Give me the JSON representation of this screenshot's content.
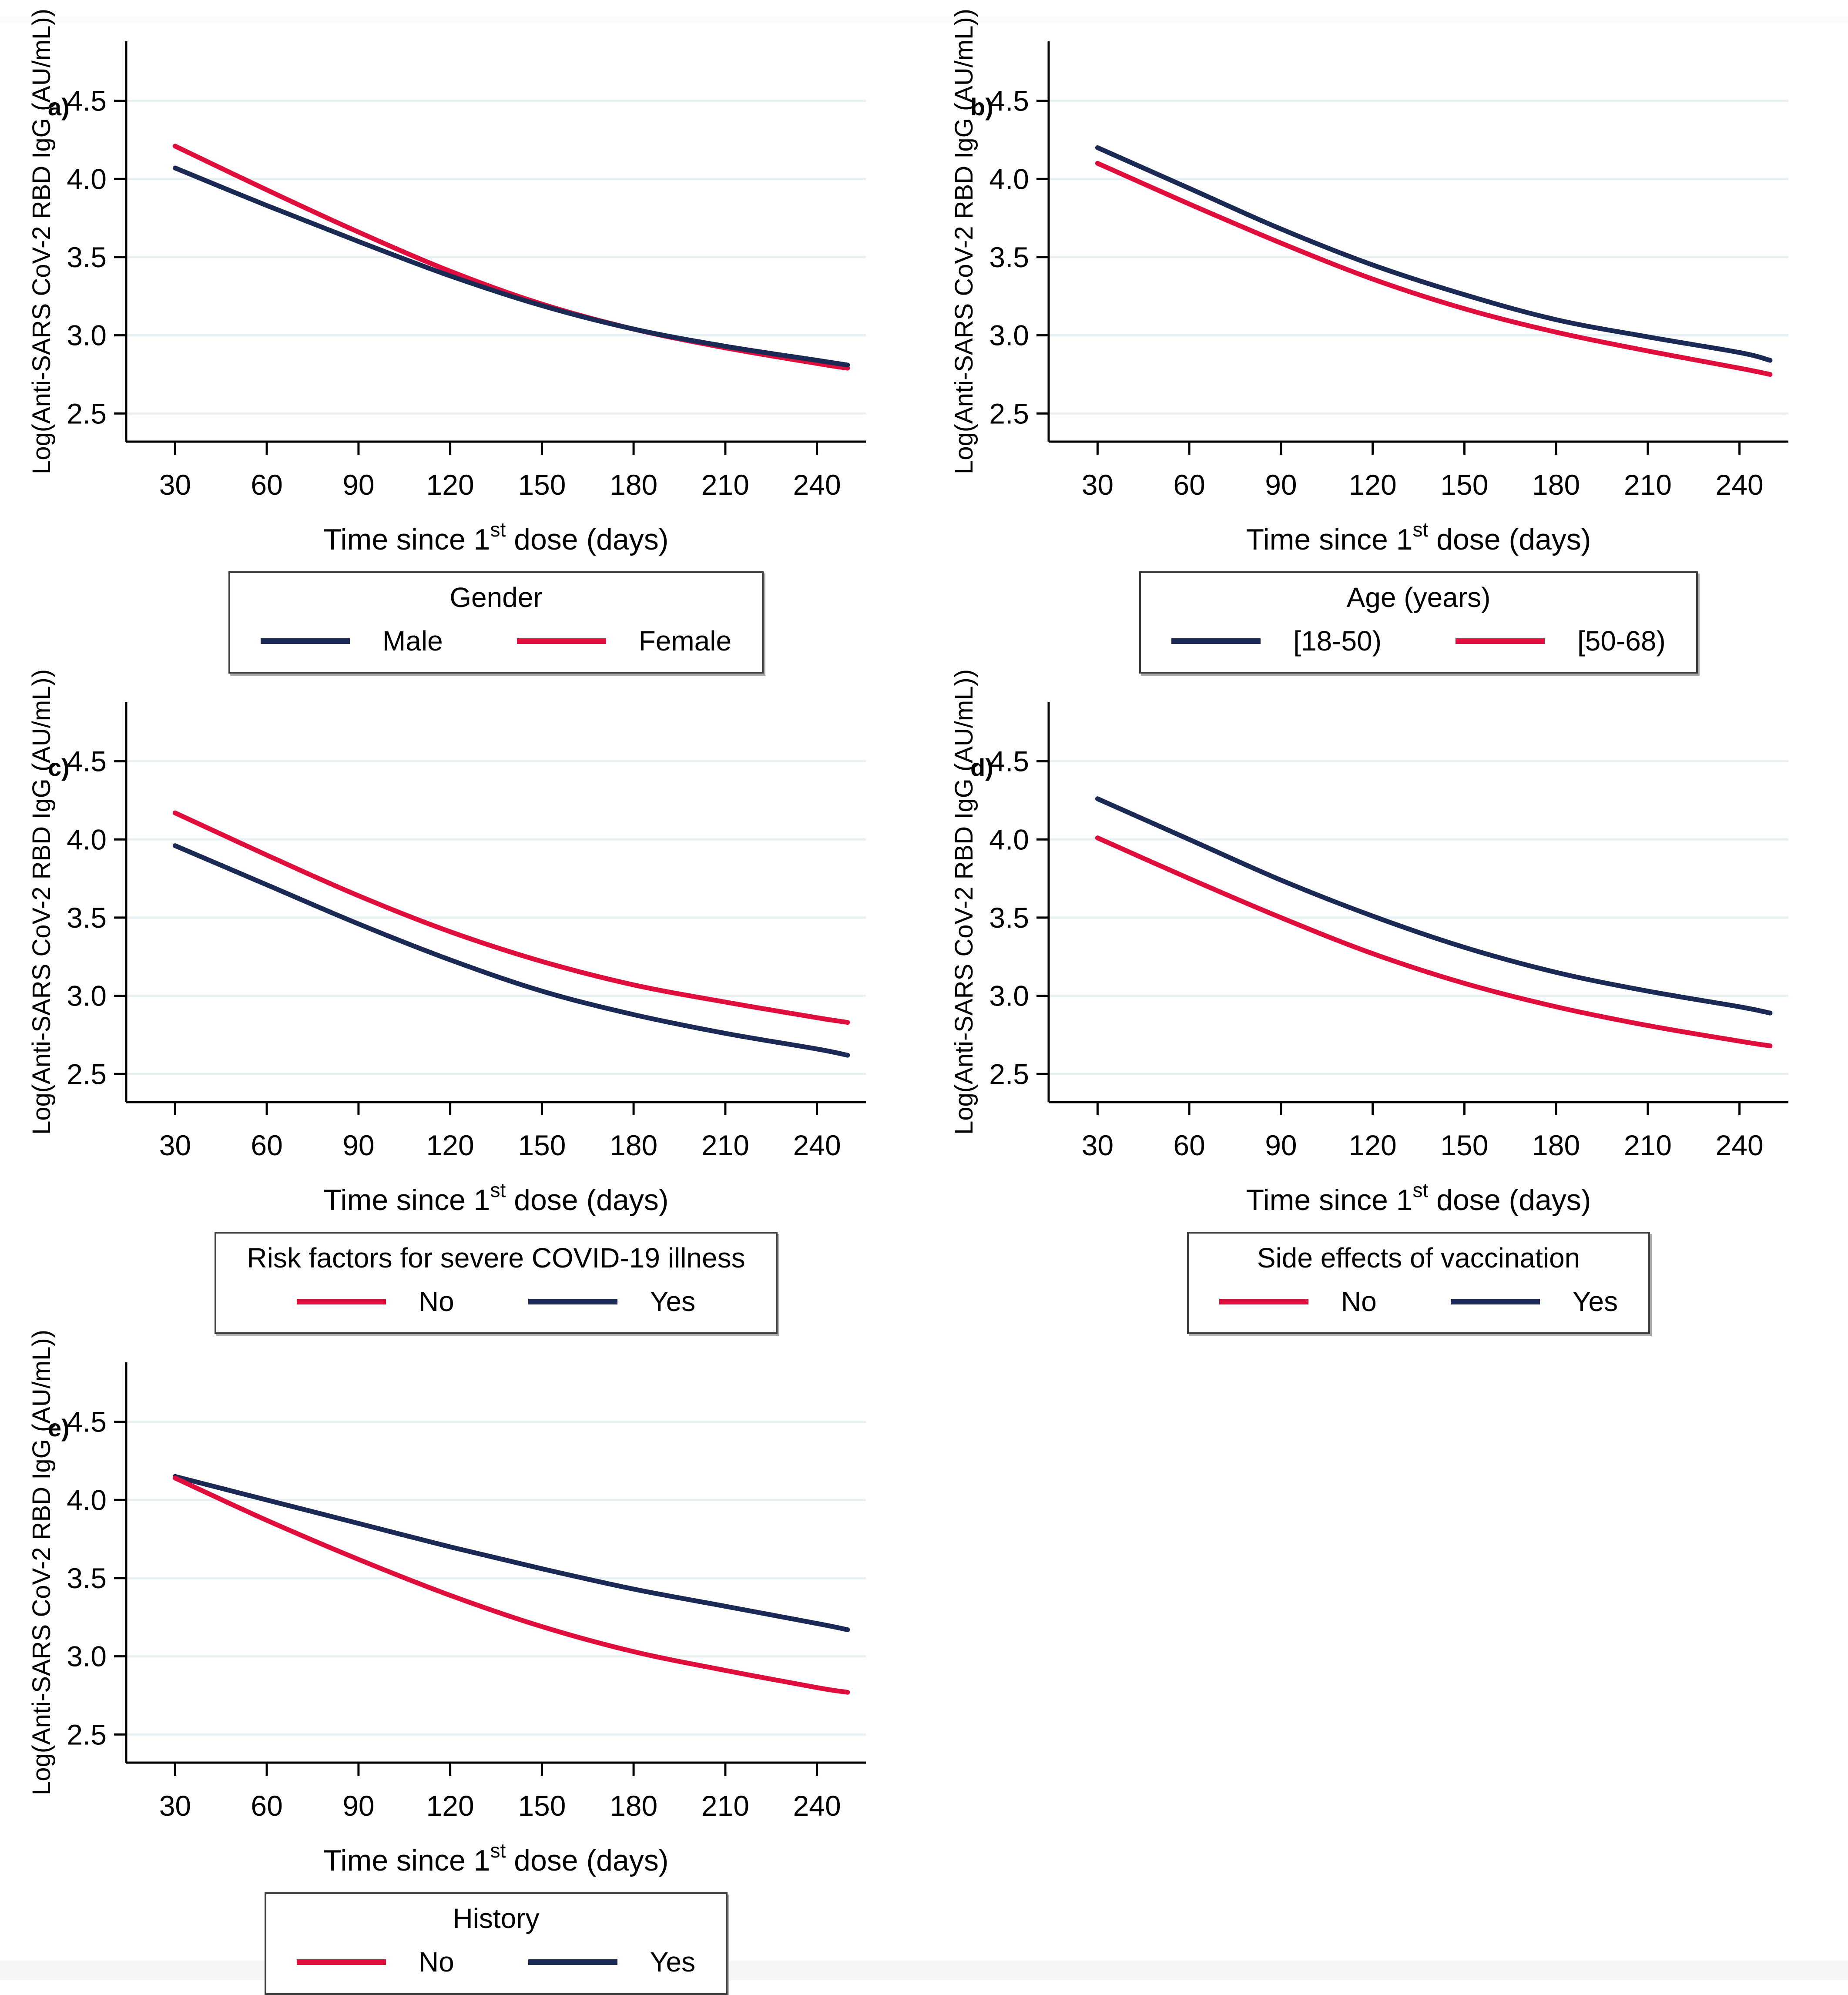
{
  "figure": {
    "background": "#ffffff",
    "grid_color": "#e8f0f4",
    "axis_color": "#000000",
    "navy": "#1b2a55",
    "crimson": "#e00e3c",
    "footer_strip_color": "#f5f6f8"
  },
  "chart_data": [
    {
      "type": "line",
      "panel_letter": "a)",
      "legend_title": "Gender",
      "legend_position": "bottom",
      "ylabel": "Log(Anti-SARS CoV-2 RBD IgG (AU/mL))",
      "xlabel_pre": "Time since 1",
      "xlabel_sup": "st",
      "xlabel_post": " dose (days)",
      "grid": "horizontal-only",
      "x": [
        30,
        60,
        90,
        120,
        150,
        180,
        210,
        240,
        250
      ],
      "x_ticks": [
        30,
        60,
        90,
        120,
        150,
        180,
        210,
        240
      ],
      "y_ticks": [
        2.5,
        3.0,
        3.5,
        4.0,
        4.5
      ],
      "y_tick_labels": [
        "2.5",
        "3.0",
        "3.5",
        "4.0",
        "4.5"
      ],
      "xlim": [
        14,
        256
      ],
      "ylim": [
        2.32,
        4.88
      ],
      "series": [
        {
          "name": "Male",
          "color": "#1b2a55",
          "values": [
            4.07,
            3.83,
            3.6,
            3.38,
            3.19,
            3.04,
            2.93,
            2.84,
            2.81
          ]
        },
        {
          "name": "Female",
          "color": "#e00e3c",
          "values": [
            4.21,
            3.93,
            3.66,
            3.41,
            3.2,
            3.04,
            2.92,
            2.82,
            2.79
          ]
        }
      ]
    },
    {
      "type": "line",
      "panel_letter": "b)",
      "legend_title": "Age (years)",
      "legend_position": "bottom",
      "ylabel": "Log(Anti-SARS CoV-2 RBD IgG (AU/mL))",
      "xlabel_pre": "Time since 1",
      "xlabel_sup": "st",
      "xlabel_post": " dose (days)",
      "grid": "horizontal-only",
      "x": [
        30,
        60,
        90,
        120,
        150,
        180,
        210,
        240,
        250
      ],
      "x_ticks": [
        30,
        60,
        90,
        120,
        150,
        180,
        210,
        240
      ],
      "y_ticks": [
        2.5,
        3.0,
        3.5,
        4.0,
        4.5
      ],
      "y_tick_labels": [
        "2.5",
        "3.0",
        "3.5",
        "4.0",
        "4.5"
      ],
      "xlim": [
        14,
        256
      ],
      "ylim": [
        2.32,
        4.88
      ],
      "series": [
        {
          "name": "[18-50)",
          "color": "#1b2a55",
          "values": [
            4.2,
            3.94,
            3.68,
            3.45,
            3.26,
            3.1,
            2.99,
            2.89,
            2.84
          ]
        },
        {
          "name": "[50-68)",
          "color": "#e00e3c",
          "values": [
            4.1,
            3.84,
            3.59,
            3.36,
            3.17,
            3.02,
            2.9,
            2.79,
            2.75
          ]
        }
      ]
    },
    {
      "type": "line",
      "panel_letter": "c)",
      "legend_title": "Risk factors for severe COVID-19 illness",
      "legend_position": "bottom",
      "ylabel": "Log(Anti-SARS CoV-2 RBD IgG (AU/mL))",
      "xlabel_pre": "Time since 1",
      "xlabel_sup": "st",
      "xlabel_post": " dose (days)",
      "grid": "horizontal-only",
      "x": [
        30,
        60,
        90,
        120,
        150,
        180,
        210,
        240,
        250
      ],
      "x_ticks": [
        30,
        60,
        90,
        120,
        150,
        180,
        210,
        240
      ],
      "y_ticks": [
        2.5,
        3.0,
        3.5,
        4.0,
        4.5
      ],
      "y_tick_labels": [
        "2.5",
        "3.0",
        "3.5",
        "4.0",
        "4.5"
      ],
      "xlim": [
        14,
        256
      ],
      "ylim": [
        2.32,
        4.88
      ],
      "series": [
        {
          "name": "No",
          "color": "#e00e3c",
          "values": [
            4.17,
            3.9,
            3.64,
            3.41,
            3.22,
            3.07,
            2.96,
            2.86,
            2.83
          ]
        },
        {
          "name": "Yes",
          "color": "#1b2a55",
          "values": [
            3.96,
            3.71,
            3.46,
            3.23,
            3.03,
            2.88,
            2.76,
            2.66,
            2.62
          ]
        }
      ]
    },
    {
      "type": "line",
      "panel_letter": "d)",
      "legend_title": "Side effects of vaccination",
      "legend_position": "bottom",
      "ylabel": "Log(Anti-SARS CoV-2 RBD IgG (AU/mL))",
      "xlabel_pre": "Time since 1",
      "xlabel_sup": "st",
      "xlabel_post": " dose (days)",
      "grid": "horizontal-only",
      "x": [
        30,
        60,
        90,
        120,
        150,
        180,
        210,
        240,
        250
      ],
      "x_ticks": [
        30,
        60,
        90,
        120,
        150,
        180,
        210,
        240
      ],
      "y_ticks": [
        2.5,
        3.0,
        3.5,
        4.0,
        4.5
      ],
      "y_tick_labels": [
        "2.5",
        "3.0",
        "3.5",
        "4.0",
        "4.5"
      ],
      "xlim": [
        14,
        256
      ],
      "ylim": [
        2.32,
        4.88
      ],
      "series": [
        {
          "name": "No",
          "color": "#e00e3c",
          "values": [
            4.01,
            3.75,
            3.5,
            3.27,
            3.08,
            2.93,
            2.81,
            2.71,
            2.68
          ]
        },
        {
          "name": "Yes",
          "color": "#1b2a55",
          "values": [
            4.26,
            4.0,
            3.74,
            3.51,
            3.31,
            3.15,
            3.03,
            2.93,
            2.89
          ]
        }
      ]
    },
    {
      "type": "line",
      "panel_letter": "e)",
      "legend_title": "History",
      "legend_position": "bottom",
      "ylabel": "Log(Anti-SARS CoV-2 RBD IgG (AU/mL))",
      "xlabel_pre": "Time since 1",
      "xlabel_sup": "st",
      "xlabel_post": " dose (days)",
      "grid": "horizontal-only",
      "x": [
        30,
        60,
        90,
        120,
        150,
        180,
        210,
        240,
        250
      ],
      "x_ticks": [
        30,
        60,
        90,
        120,
        150,
        180,
        210,
        240
      ],
      "y_ticks": [
        2.5,
        3.0,
        3.5,
        4.0,
        4.5
      ],
      "y_tick_labels": [
        "2.5",
        "3.0",
        "3.5",
        "4.0",
        "4.5"
      ],
      "xlim": [
        14,
        256
      ],
      "ylim": [
        2.32,
        4.88
      ],
      "series": [
        {
          "name": "No",
          "color": "#e00e3c",
          "values": [
            4.14,
            3.87,
            3.62,
            3.39,
            3.19,
            3.03,
            2.91,
            2.8,
            2.77
          ]
        },
        {
          "name": "Yes",
          "color": "#1b2a55",
          "values": [
            4.15,
            4.0,
            3.85,
            3.7,
            3.56,
            3.43,
            3.32,
            3.21,
            3.17
          ]
        }
      ]
    }
  ]
}
